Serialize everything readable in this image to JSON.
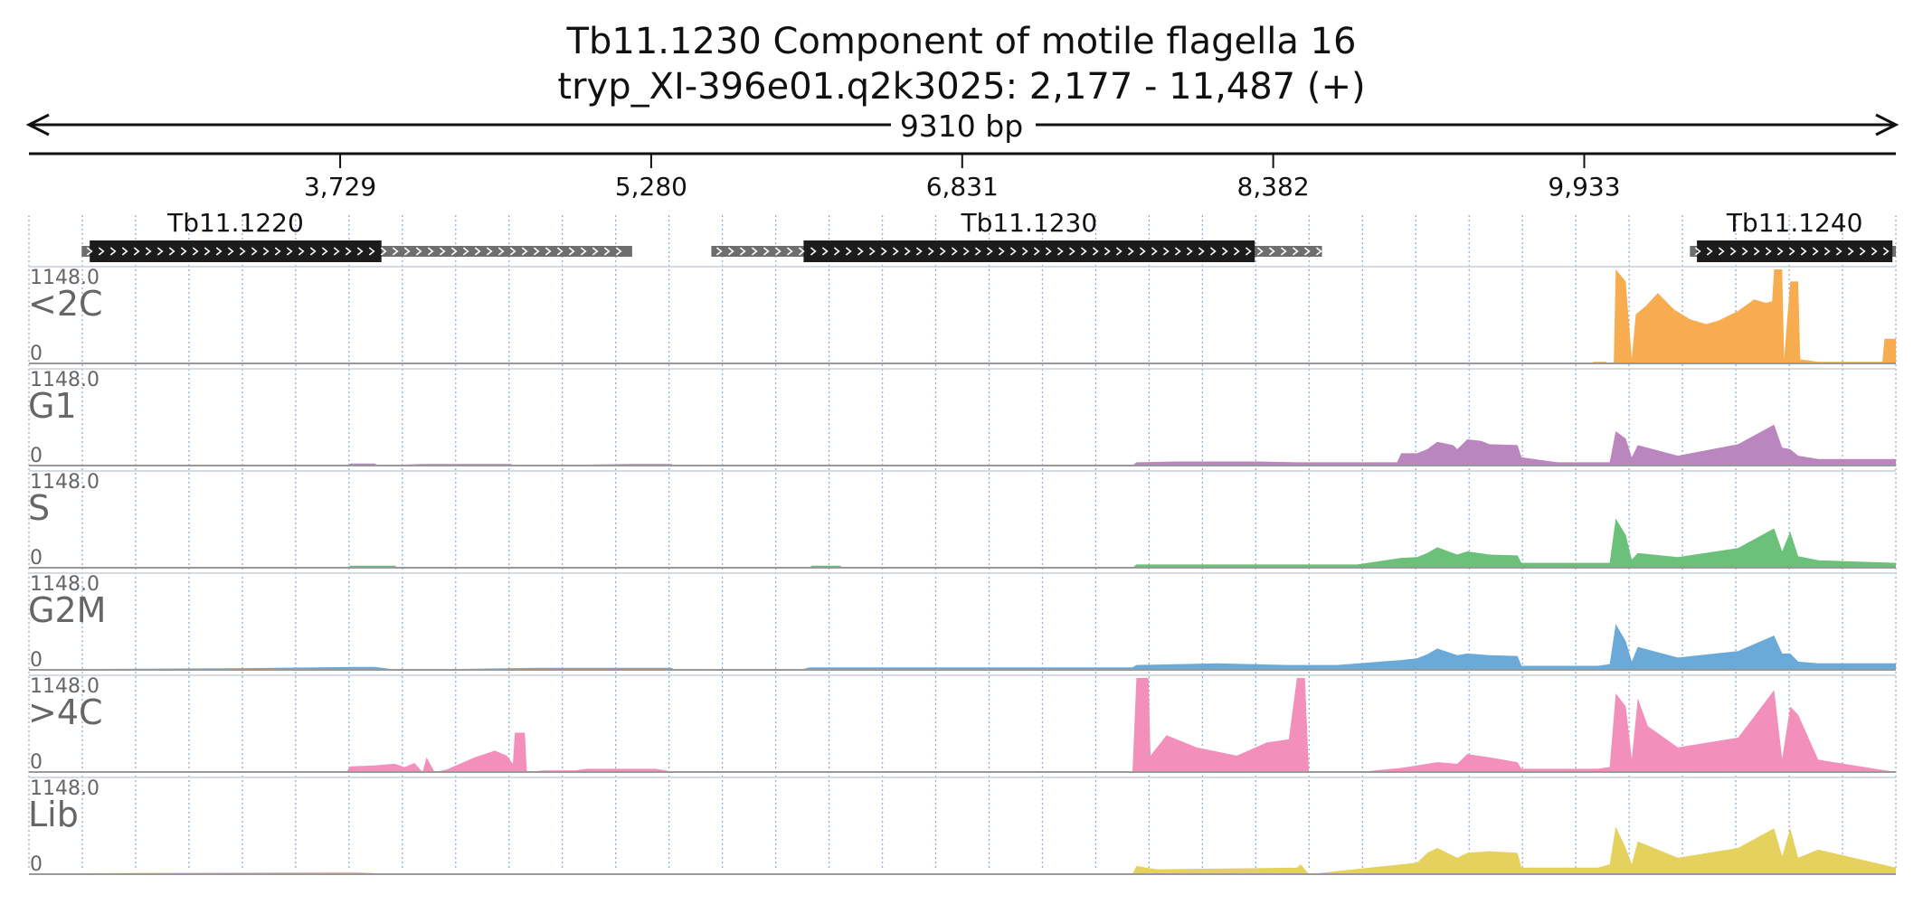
{
  "title": "Tb11.1230  Component of motile flagella 16",
  "subtitle": "tryp_XI-396e01.q2k3025: 2,177 - 11,487 (+)",
  "span_label": "9310 bp",
  "region": {
    "start": 2177,
    "end": 11487
  },
  "ruler_ticks": [
    "3,729",
    "5,280",
    "6,831",
    "8,382",
    "9,933"
  ],
  "colors": {
    "axis": "#111111",
    "grid": "#8fb0d6",
    "gene_cds": "#1c1c1c",
    "gene_utr": "#6e6e6e",
    "label": "#666666"
  },
  "genes": [
    {
      "name": "Tb11.1220",
      "utr": [
        2440,
        5185
      ],
      "cds": [
        2480,
        3935
      ]
    },
    {
      "name": "Tb11.1230",
      "utr": [
        5580,
        8625
      ],
      "cds": [
        6040,
        8290
      ]
    },
    {
      "name": "Tb11.1240",
      "utr": [
        10460,
        11487
      ],
      "cds": [
        10495,
        11470
      ]
    }
  ],
  "chart_data": {
    "type": "area",
    "xlim": [
      2177,
      11487
    ],
    "ylim": [
      0,
      1148.0
    ],
    "tracks": [
      {
        "label": "<2C",
        "color": "#f7ac4f",
        "ymax_label": "1148.0",
        "ymin_label": "0",
        "points": [
          [
            2177,
            0
          ],
          [
            9960,
            0
          ],
          [
            9980,
            20
          ],
          [
            10040,
            20
          ],
          [
            10060,
            0
          ],
          [
            10080,
            0
          ],
          [
            10090,
            1148
          ],
          [
            10140,
            1000
          ],
          [
            10170,
            60
          ],
          [
            10190,
            600
          ],
          [
            10240,
            700
          ],
          [
            10300,
            860
          ],
          [
            10380,
            660
          ],
          [
            10460,
            540
          ],
          [
            10540,
            480
          ],
          [
            10600,
            520
          ],
          [
            10700,
            640
          ],
          [
            10780,
            780
          ],
          [
            10840,
            740
          ],
          [
            10870,
            760
          ],
          [
            10880,
            1148
          ],
          [
            10920,
            1148
          ],
          [
            10930,
            60
          ],
          [
            10960,
            1000
          ],
          [
            11000,
            1000
          ],
          [
            11010,
            50
          ],
          [
            11100,
            20
          ],
          [
            11380,
            20
          ],
          [
            11420,
            20
          ],
          [
            11430,
            300
          ],
          [
            11487,
            300
          ]
        ]
      },
      {
        "label": "G1",
        "color": "#b986bd",
        "ymax_label": "1148.0",
        "ymin_label": "0",
        "points": [
          [
            2177,
            0
          ],
          [
            3760,
            0
          ],
          [
            3780,
            25
          ],
          [
            3900,
            25
          ],
          [
            3920,
            0
          ],
          [
            4140,
            20
          ],
          [
            4580,
            20
          ],
          [
            4600,
            0
          ],
          [
            5180,
            20
          ],
          [
            5380,
            20
          ],
          [
            5400,
            0
          ],
          [
            7680,
            0
          ],
          [
            7700,
            40
          ],
          [
            7900,
            50
          ],
          [
            8300,
            50
          ],
          [
            8500,
            40
          ],
          [
            8700,
            40
          ],
          [
            9000,
            40
          ],
          [
            9020,
            150
          ],
          [
            9100,
            150
          ],
          [
            9150,
            200
          ],
          [
            9200,
            290
          ],
          [
            9280,
            250
          ],
          [
            9300,
            200
          ],
          [
            9350,
            320
          ],
          [
            9420,
            300
          ],
          [
            9460,
            260
          ],
          [
            9600,
            250
          ],
          [
            9620,
            100
          ],
          [
            9800,
            40
          ],
          [
            10000,
            40
          ],
          [
            10060,
            40
          ],
          [
            10090,
            420
          ],
          [
            10140,
            330
          ],
          [
            10170,
            100
          ],
          [
            10200,
            250
          ],
          [
            10400,
            120
          ],
          [
            10700,
            260
          ],
          [
            10880,
            500
          ],
          [
            10920,
            220
          ],
          [
            10960,
            200
          ],
          [
            11000,
            120
          ],
          [
            11100,
            80
          ],
          [
            11487,
            80
          ]
        ]
      },
      {
        "label": "S",
        "color": "#6cc17a",
        "ymax_label": "1148.0",
        "ymin_label": "0",
        "points": [
          [
            2177,
            0
          ],
          [
            3760,
            0
          ],
          [
            3780,
            25
          ],
          [
            4000,
            25
          ],
          [
            4020,
            0
          ],
          [
            6070,
            0
          ],
          [
            6080,
            25
          ],
          [
            6220,
            25
          ],
          [
            6240,
            0
          ],
          [
            7680,
            0
          ],
          [
            7700,
            40
          ],
          [
            8800,
            40
          ],
          [
            9020,
            120
          ],
          [
            9100,
            130
          ],
          [
            9150,
            180
          ],
          [
            9200,
            250
          ],
          [
            9300,
            160
          ],
          [
            9350,
            200
          ],
          [
            9460,
            160
          ],
          [
            9600,
            150
          ],
          [
            9620,
            60
          ],
          [
            9900,
            60
          ],
          [
            10000,
            60
          ],
          [
            10060,
            60
          ],
          [
            10090,
            600
          ],
          [
            10140,
            400
          ],
          [
            10170,
            100
          ],
          [
            10200,
            180
          ],
          [
            10400,
            130
          ],
          [
            10700,
            240
          ],
          [
            10880,
            480
          ],
          [
            10920,
            200
          ],
          [
            10960,
            440
          ],
          [
            11000,
            140
          ],
          [
            11100,
            90
          ],
          [
            11487,
            60
          ]
        ]
      },
      {
        "label": "G2M",
        "color": "#6aa9d8",
        "ymax_label": "1148.0",
        "ymin_label": "0",
        "points": [
          [
            2177,
            0
          ],
          [
            2350,
            10
          ],
          [
            3200,
            20
          ],
          [
            3780,
            35
          ],
          [
            3900,
            35
          ],
          [
            4020,
            0
          ],
          [
            4710,
            25
          ],
          [
            5380,
            25
          ],
          [
            5400,
            0
          ],
          [
            6020,
            0
          ],
          [
            6070,
            30
          ],
          [
            7680,
            30
          ],
          [
            7700,
            60
          ],
          [
            8100,
            80
          ],
          [
            8460,
            60
          ],
          [
            8700,
            60
          ],
          [
            9020,
            120
          ],
          [
            9100,
            140
          ],
          [
            9150,
            190
          ],
          [
            9200,
            260
          ],
          [
            9300,
            180
          ],
          [
            9350,
            200
          ],
          [
            9460,
            180
          ],
          [
            9600,
            170
          ],
          [
            9620,
            50
          ],
          [
            10000,
            50
          ],
          [
            10060,
            70
          ],
          [
            10090,
            560
          ],
          [
            10140,
            350
          ],
          [
            10170,
            100
          ],
          [
            10200,
            280
          ],
          [
            10400,
            150
          ],
          [
            10700,
            230
          ],
          [
            10880,
            420
          ],
          [
            10920,
            200
          ],
          [
            10960,
            200
          ],
          [
            11000,
            100
          ],
          [
            11100,
            80
          ],
          [
            11487,
            80
          ]
        ]
      },
      {
        "label": ">4C",
        "color": "#f28fbb",
        "ymax_label": "1148.0",
        "ymin_label": "0",
        "points": [
          [
            2177,
            0
          ],
          [
            3760,
            0
          ],
          [
            3780,
            70
          ],
          [
            3900,
            80
          ],
          [
            4000,
            100
          ],
          [
            4050,
            60
          ],
          [
            4100,
            110
          ],
          [
            4140,
            0
          ],
          [
            4160,
            180
          ],
          [
            4200,
            0
          ],
          [
            4260,
            30
          ],
          [
            4400,
            180
          ],
          [
            4500,
            260
          ],
          [
            4560,
            200
          ],
          [
            4590,
            100
          ],
          [
            4600,
            480
          ],
          [
            4650,
            480
          ],
          [
            4660,
            0
          ],
          [
            4740,
            20
          ],
          [
            4900,
            20
          ],
          [
            4960,
            40
          ],
          [
            5300,
            40
          ],
          [
            5400,
            0
          ],
          [
            7680,
            0
          ],
          [
            7700,
            1148
          ],
          [
            7760,
            1148
          ],
          [
            7770,
            200
          ],
          [
            7850,
            450
          ],
          [
            8000,
            300
          ],
          [
            8200,
            200
          ],
          [
            8350,
            360
          ],
          [
            8460,
            400
          ],
          [
            8500,
            1148
          ],
          [
            8540,
            1148
          ],
          [
            8560,
            0
          ],
          [
            8700,
            10
          ],
          [
            8850,
            10
          ],
          [
            9020,
            50
          ],
          [
            9200,
            120
          ],
          [
            9300,
            100
          ],
          [
            9350,
            220
          ],
          [
            9460,
            180
          ],
          [
            9600,
            120
          ],
          [
            9620,
            40
          ],
          [
            10000,
            40
          ],
          [
            10060,
            60
          ],
          [
            10090,
            960
          ],
          [
            10140,
            800
          ],
          [
            10170,
            160
          ],
          [
            10200,
            900
          ],
          [
            10250,
            560
          ],
          [
            10400,
            300
          ],
          [
            10700,
            420
          ],
          [
            10880,
            1000
          ],
          [
            10920,
            160
          ],
          [
            10960,
            800
          ],
          [
            11000,
            700
          ],
          [
            11100,
            150
          ],
          [
            11487,
            0
          ]
        ]
      },
      {
        "label": "Lib",
        "color": "#e5d15d",
        "ymax_label": "1148.0",
        "ymin_label": "0",
        "points": [
          [
            2177,
            0
          ],
          [
            2300,
            10
          ],
          [
            2700,
            15
          ],
          [
            3800,
            25
          ],
          [
            4020,
            0
          ],
          [
            5400,
            0
          ],
          [
            7680,
            0
          ],
          [
            7700,
            100
          ],
          [
            7800,
            60
          ],
          [
            8500,
            80
          ],
          [
            8520,
            120
          ],
          [
            8560,
            0
          ],
          [
            9020,
            120
          ],
          [
            9100,
            140
          ],
          [
            9150,
            260
          ],
          [
            9200,
            320
          ],
          [
            9300,
            200
          ],
          [
            9350,
            260
          ],
          [
            9460,
            280
          ],
          [
            9600,
            260
          ],
          [
            9620,
            80
          ],
          [
            10000,
            80
          ],
          [
            10060,
            120
          ],
          [
            10090,
            580
          ],
          [
            10140,
            320
          ],
          [
            10170,
            120
          ],
          [
            10200,
            400
          ],
          [
            10400,
            200
          ],
          [
            10700,
            320
          ],
          [
            10880,
            560
          ],
          [
            10920,
            220
          ],
          [
            10960,
            560
          ],
          [
            11000,
            200
          ],
          [
            11100,
            300
          ],
          [
            11487,
            80
          ]
        ]
      }
    ]
  }
}
